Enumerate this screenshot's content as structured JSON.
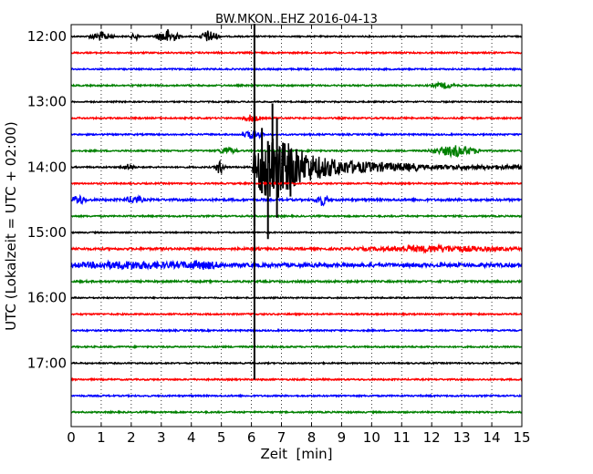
{
  "chart_data": {
    "type": "line",
    "subtype": "helicorder-seismogram",
    "title": "BW.MKON..EHZ 2016-04-13",
    "xlabel": "Zeit  [min]",
    "ylabel": "UTC (Lokalzeit = UTC + 02:00)",
    "xlim": [
      0,
      15
    ],
    "x_ticks": [
      "0",
      "1",
      "2",
      "3",
      "4",
      "5",
      "6",
      "7",
      "8",
      "9",
      "10",
      "11",
      "12",
      "13",
      "14",
      "15"
    ],
    "y_ticks": [
      "12:00",
      "13:00",
      "14:00",
      "15:00",
      "16:00",
      "17:00"
    ],
    "y_tick_rows": [
      0,
      4,
      8,
      12,
      16,
      20
    ],
    "trace_minutes": 15,
    "grid": "vertical-dotted",
    "colors": [
      "#000000",
      "#ff0000",
      "#0000ff",
      "#008000"
    ],
    "rows": [
      {
        "start": "12:00",
        "noise": 0.7,
        "events": [
          {
            "t": 1.0,
            "a": 5,
            "d": 0.5
          },
          {
            "t": 2.15,
            "a": 4,
            "d": 0.2
          },
          {
            "t": 3.2,
            "a": 8,
            "d": 0.5
          },
          {
            "t": 4.6,
            "a": 7,
            "d": 0.4
          }
        ]
      },
      {
        "start": "12:15",
        "noise": 0.8,
        "events": []
      },
      {
        "start": "12:30",
        "noise": 0.8,
        "events": []
      },
      {
        "start": "12:45",
        "noise": 0.8,
        "events": [
          {
            "t": 12.4,
            "a": 3,
            "d": 0.5
          }
        ]
      },
      {
        "start": "13:00",
        "noise": 0.7,
        "events": []
      },
      {
        "start": "13:15",
        "noise": 0.8,
        "events": [
          {
            "t": 6.0,
            "a": 4,
            "d": 0.4
          }
        ]
      },
      {
        "start": "13:30",
        "noise": 0.8,
        "events": [
          {
            "t": 6.05,
            "a": 5,
            "d": 0.4
          }
        ]
      },
      {
        "start": "13:45",
        "noise": 0.8,
        "events": [
          {
            "t": 5.2,
            "a": 4,
            "d": 0.4
          },
          {
            "t": 12.8,
            "a": 6,
            "d": 1.0
          }
        ]
      },
      {
        "start": "14:00",
        "noise": 0.8,
        "events": [
          {
            "t": 1.9,
            "a": 3,
            "d": 0.3
          },
          {
            "t": 4.95,
            "a": 8,
            "d": 0.2
          }
        ]
      },
      {
        "start": "14:15",
        "noise": 0.8,
        "events": []
      },
      {
        "start": "14:30",
        "noise": 1.2,
        "events": [
          {
            "t": 0.25,
            "a": 5,
            "d": 0.3
          },
          {
            "t": 2.1,
            "a": 4,
            "d": 0.4
          },
          {
            "t": 8.35,
            "a": 6,
            "d": 0.3
          }
        ]
      },
      {
        "start": "14:45",
        "noise": 0.8,
        "events": []
      },
      {
        "start": "15:00",
        "noise": 0.7,
        "events": []
      },
      {
        "start": "15:15",
        "noise": 1.2,
        "events": [
          {
            "t": 12.2,
            "a": 3,
            "d": 3.0
          }
        ]
      },
      {
        "start": "15:30",
        "noise": 2.0,
        "events": [
          {
            "t": 2.0,
            "a": 3,
            "d": 2.5
          },
          {
            "t": 4.4,
            "a": 3,
            "d": 1.0
          }
        ]
      },
      {
        "start": "15:45",
        "noise": 1.0,
        "events": []
      },
      {
        "start": "16:00",
        "noise": 0.7,
        "events": []
      },
      {
        "start": "16:15",
        "noise": 0.8,
        "events": []
      },
      {
        "start": "16:30",
        "noise": 0.8,
        "events": []
      },
      {
        "start": "16:45",
        "noise": 0.8,
        "events": []
      },
      {
        "start": "17:00",
        "noise": 0.7,
        "events": []
      },
      {
        "start": "17:15",
        "noise": 0.8,
        "events": []
      },
      {
        "start": "17:30",
        "noise": 0.8,
        "events": []
      },
      {
        "start": "17:45",
        "noise": 0.8,
        "events": []
      }
    ],
    "earthquake": {
      "row": 8,
      "onset_min": 6.05,
      "peak_min": 6.6,
      "coda_end_min": 11.5,
      "peak_rows_span": [
        -4,
        4
      ],
      "note": "vertical line through rows at ~6.1 min"
    },
    "vertical_line": {
      "x_min": 6.1,
      "from_row": 0,
      "to_row": 21
    }
  }
}
